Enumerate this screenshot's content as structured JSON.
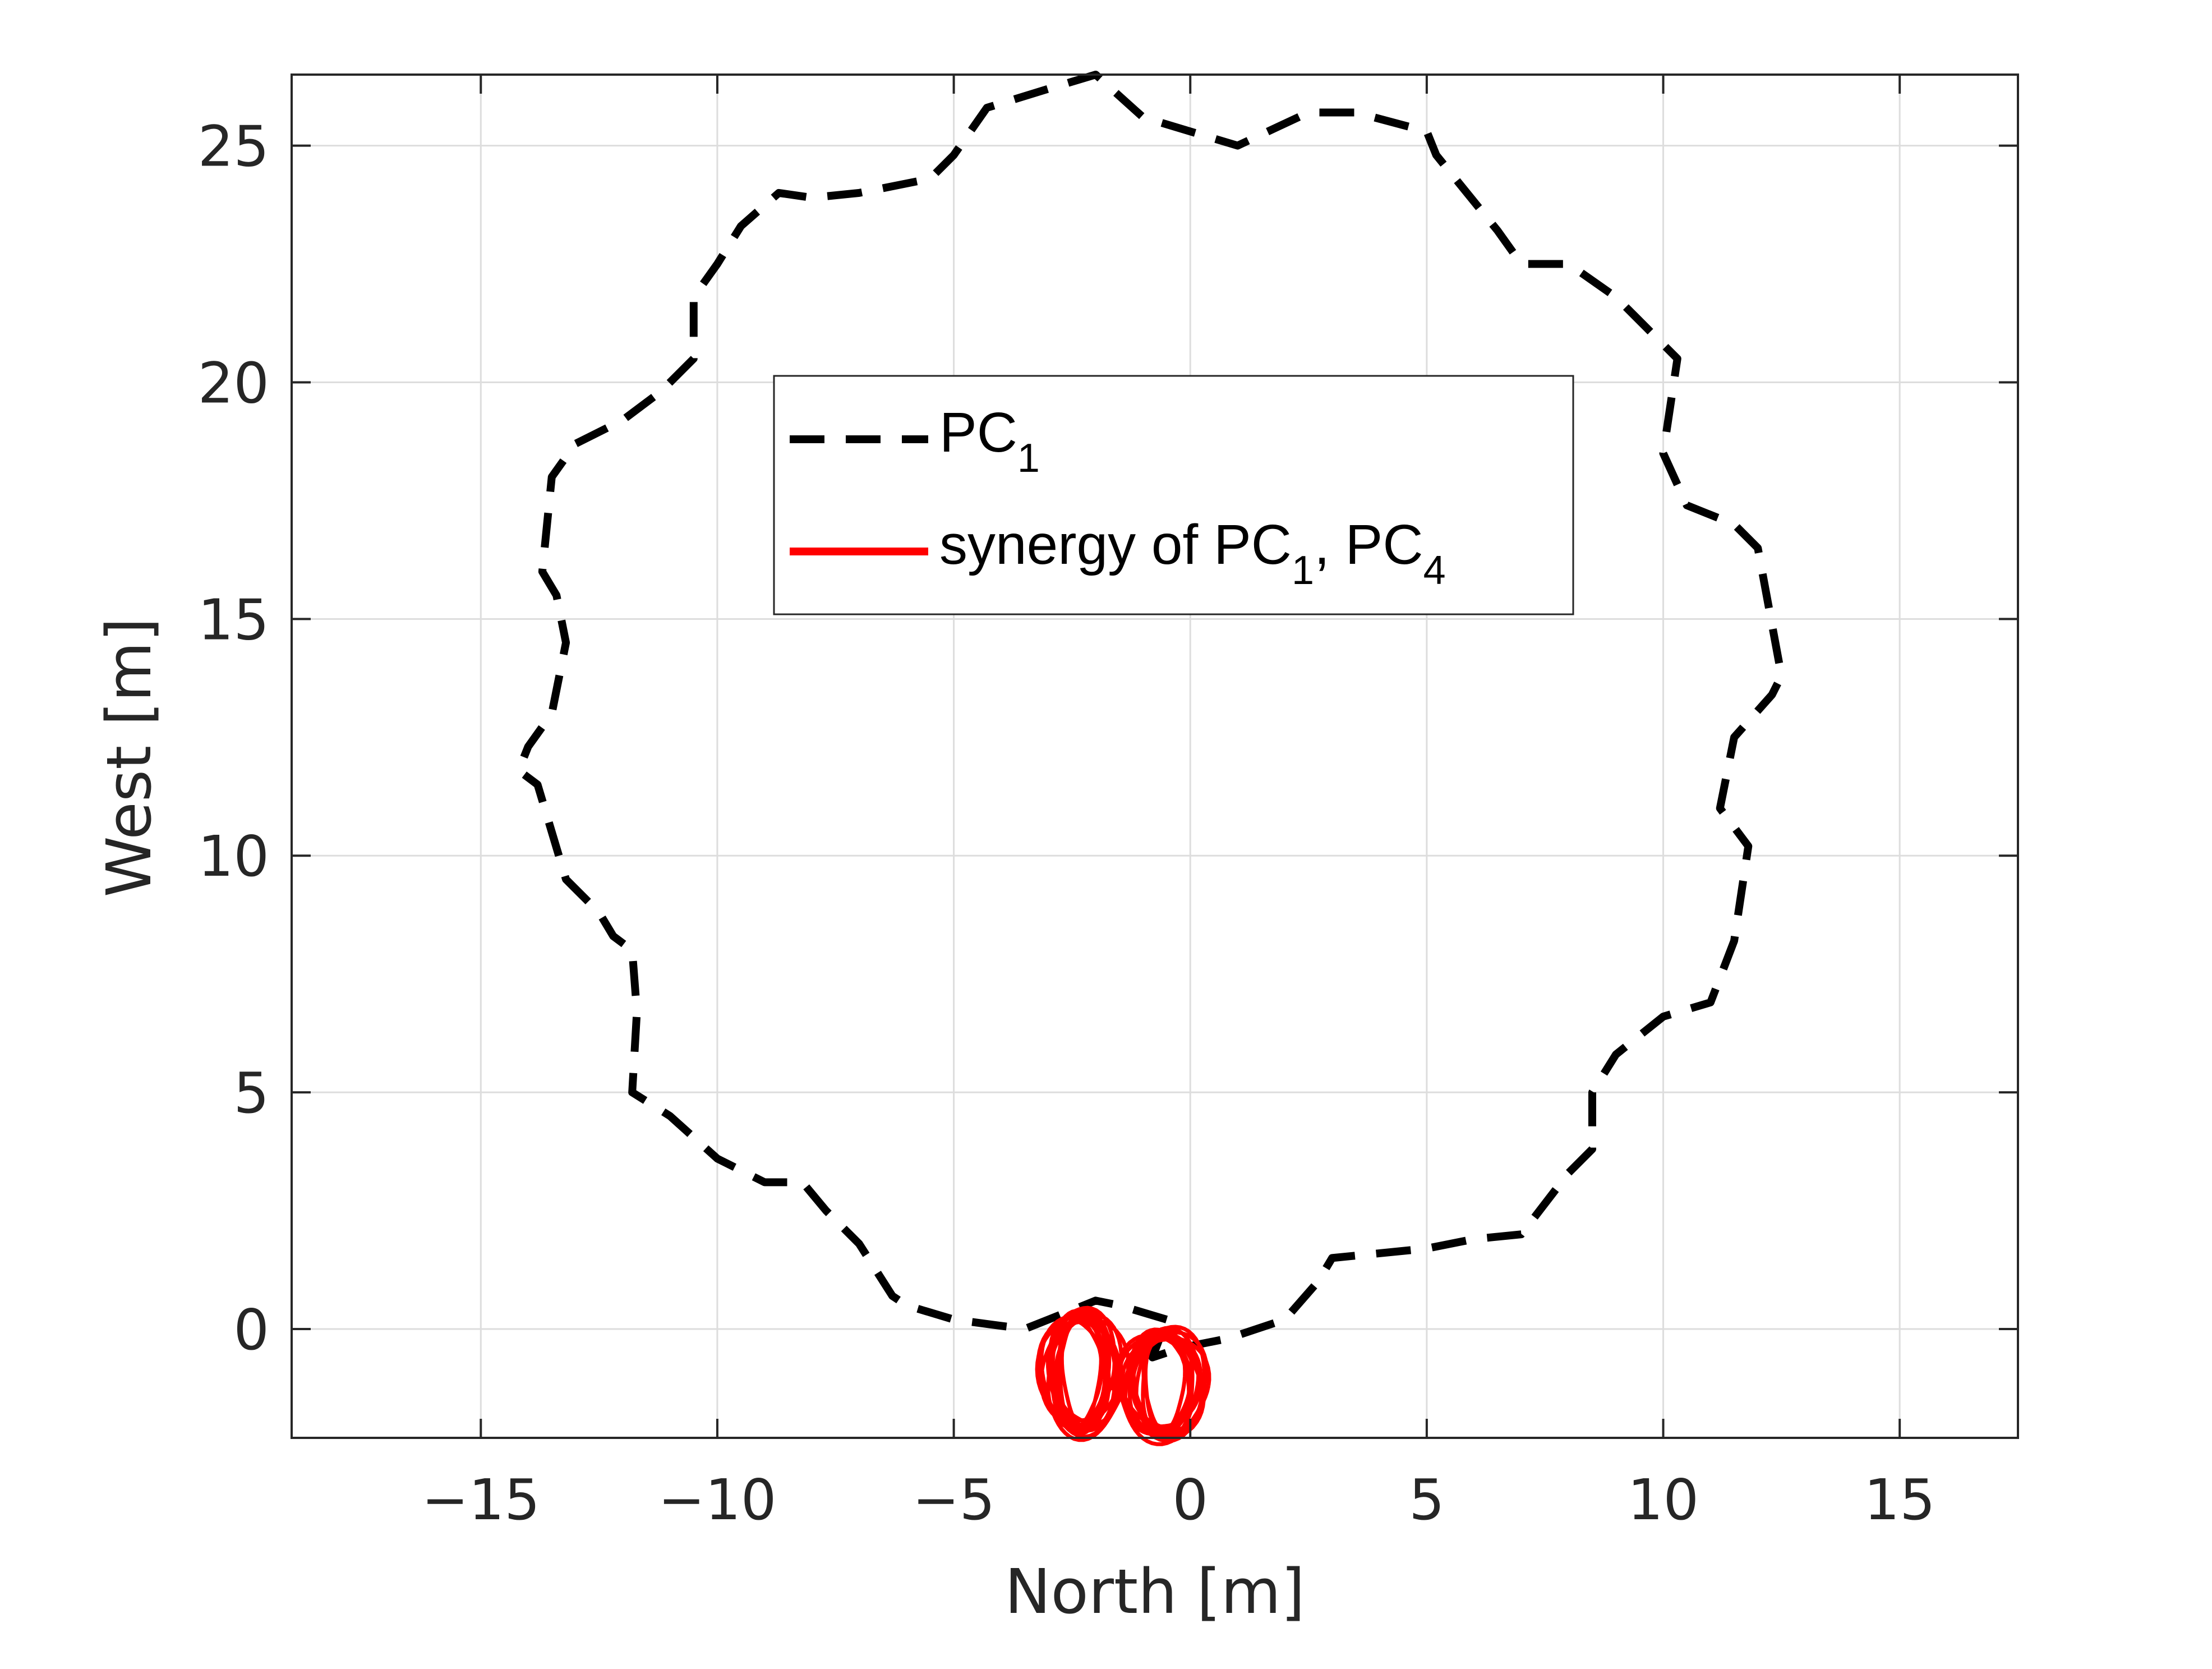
{
  "chart_data": {
    "type": "line",
    "xlabel": "North [m]",
    "ylabel": "West [m]",
    "xlim": [
      -19,
      17.5
    ],
    "ylim": [
      -2.3,
      26.5
    ],
    "xticks": [
      -15,
      -10,
      -5,
      0,
      5,
      10,
      15
    ],
    "yticks": [
      0,
      5,
      10,
      15,
      20,
      25
    ],
    "xtick_labels": [
      "−15",
      "−10",
      "−5",
      "0",
      "5",
      "10",
      "15"
    ],
    "ytick_labels": [
      "0",
      "5",
      "10",
      "15",
      "20",
      "25"
    ],
    "grid": true,
    "legend_position": "upper-center",
    "legend": [
      {
        "label": "PC",
        "sub": "1",
        "style": "dashed",
        "color": "#000000"
      },
      {
        "label_parts": [
          {
            "text": "synergy of PC",
            "sub": "1"
          },
          {
            "text": ", PC",
            "sub": "4"
          }
        ],
        "style": "solid",
        "color": "#ff0000"
      }
    ],
    "series": [
      {
        "key": "pc1",
        "color": "#000000",
        "style": "dashed",
        "x": [
          -0.5,
          -1.5,
          -2.0,
          -3.0,
          -3.5,
          -5.0,
          -6.0,
          -6.3,
          -7.0,
          -7.7,
          -8.2,
          -9.0,
          -10.0,
          -11.0,
          -11.8,
          -11.7,
          -11.8,
          -12.2,
          -12.5,
          -13.2,
          -13.8,
          -14.2,
          -14.0,
          -13.5,
          -13.2,
          -13.4,
          -13.7,
          -13.5,
          -13.0,
          -12.0,
          -11.2,
          -10.5,
          -10.5,
          -10.0,
          -9.5,
          -8.7,
          -8.0,
          -7.0,
          -5.5,
          -5.0,
          -4.3,
          -3.0,
          -2.0,
          -1.0,
          0.0,
          1.0,
          2.5,
          3.5,
          5.0,
          5.2,
          6.5,
          7.0,
          8.0,
          9.0,
          10.3,
          10.0,
          10.5,
          11.5,
          12.0,
          12.5,
          12.3,
          11.5,
          11.2,
          11.8,
          11.5,
          11.0,
          10.0,
          9.0,
          8.5,
          8.5,
          8.0,
          7.0,
          6.0,
          5.0,
          3.0,
          2.7,
          2.0,
          0.8,
          -0.2,
          -0.8
        ],
        "y": [
          0.2,
          0.5,
          0.6,
          0.2,
          0.0,
          0.2,
          0.5,
          0.7,
          1.8,
          2.5,
          3.1,
          3.1,
          3.6,
          4.5,
          5.0,
          6.7,
          8.0,
          8.3,
          8.8,
          9.5,
          11.5,
          11.8,
          12.3,
          13.0,
          14.5,
          15.5,
          16.0,
          18.0,
          18.7,
          19.2,
          19.8,
          20.5,
          21.8,
          22.5,
          23.3,
          24.0,
          23.9,
          24.0,
          24.3,
          24.8,
          25.8,
          26.2,
          26.5,
          25.6,
          25.3,
          25.0,
          25.7,
          25.7,
          25.3,
          24.8,
          23.2,
          22.5,
          22.5,
          21.8,
          20.5,
          18.5,
          17.4,
          17.0,
          16.5,
          13.8,
          13.4,
          12.5,
          11.0,
          10.2,
          8.2,
          6.9,
          6.6,
          5.8,
          5.0,
          3.8,
          3.3,
          2.0,
          1.9,
          1.7,
          1.5,
          1.0,
          0.2,
          -0.2,
          -0.4,
          -0.6
        ]
      },
      {
        "key": "synergy",
        "color": "#ff0000",
        "style": "solid",
        "loops": [
          {
            "x_min": -3.2,
            "x_max": -1.4,
            "y_min": -2.2,
            "y_max": 0.4
          },
          {
            "x_min": -1.5,
            "x_max": 0.4,
            "y_min": -2.3,
            "y_max": 0.0
          }
        ]
      }
    ]
  }
}
